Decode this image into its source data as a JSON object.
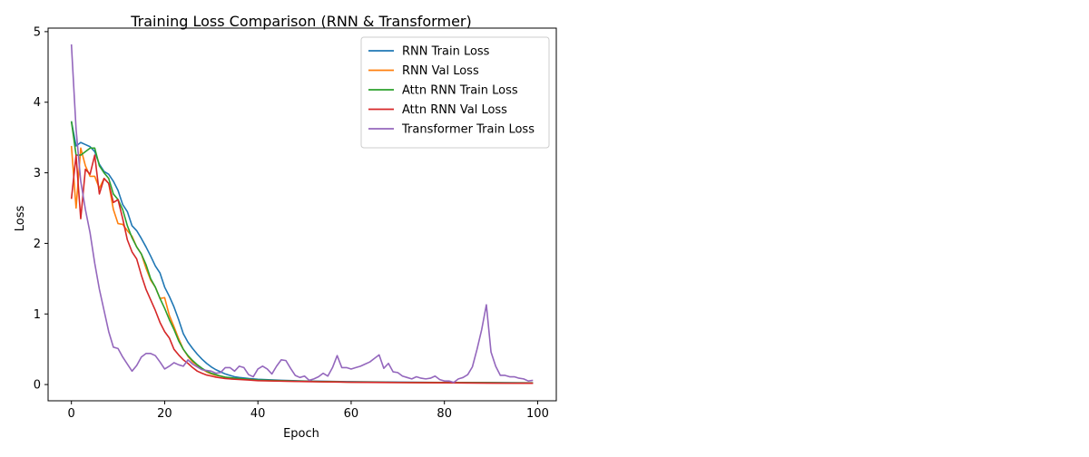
{
  "chart_data": {
    "type": "line",
    "title": "Training Loss Comparison (RNN & Transformer)",
    "xlabel": "Epoch",
    "ylabel": "Loss",
    "xlim": [
      -5,
      104
    ],
    "ylim": [
      -0.23,
      5.05
    ],
    "xticks": [
      0,
      20,
      40,
      60,
      80,
      100
    ],
    "yticks": [
      0,
      1,
      2,
      3,
      4,
      5
    ],
    "grid": false,
    "legend_position": "top-right",
    "series": [
      {
        "name": "RNN Train Loss",
        "color": "#1f77b4",
        "points": [
          [
            0,
            3.73
          ],
          [
            1,
            3.38
          ],
          [
            2,
            3.43
          ],
          [
            3,
            3.4
          ],
          [
            4,
            3.37
          ],
          [
            5,
            3.3
          ],
          [
            6,
            3.12
          ],
          [
            7,
            3.02
          ],
          [
            8,
            2.98
          ],
          [
            9,
            2.88
          ],
          [
            10,
            2.75
          ],
          [
            11,
            2.55
          ],
          [
            12,
            2.45
          ],
          [
            13,
            2.25
          ],
          [
            14,
            2.18
          ],
          [
            15,
            2.07
          ],
          [
            16,
            1.95
          ],
          [
            17,
            1.82
          ],
          [
            18,
            1.68
          ],
          [
            19,
            1.58
          ],
          [
            20,
            1.38
          ],
          [
            21,
            1.25
          ],
          [
            22,
            1.1
          ],
          [
            23,
            0.92
          ],
          [
            24,
            0.72
          ],
          [
            25,
            0.6
          ],
          [
            26,
            0.51
          ],
          [
            27,
            0.43
          ],
          [
            28,
            0.36
          ],
          [
            29,
            0.3
          ],
          [
            30,
            0.25
          ],
          [
            31,
            0.21
          ],
          [
            32,
            0.18
          ],
          [
            33,
            0.15
          ],
          [
            34,
            0.13
          ],
          [
            35,
            0.11
          ],
          [
            36,
            0.1
          ],
          [
            38,
            0.085
          ],
          [
            40,
            0.075
          ],
          [
            45,
            0.06
          ],
          [
            50,
            0.05
          ],
          [
            55,
            0.045
          ],
          [
            60,
            0.04
          ],
          [
            70,
            0.035
          ],
          [
            80,
            0.03
          ],
          [
            90,
            0.028
          ],
          [
            99,
            0.025
          ]
        ]
      },
      {
        "name": "RNN Val Loss",
        "color": "#ff7f0e",
        "points": [
          [
            0,
            3.38
          ],
          [
            1,
            2.5
          ],
          [
            2,
            3.35
          ],
          [
            3,
            3.1
          ],
          [
            4,
            2.95
          ],
          [
            5,
            2.95
          ],
          [
            6,
            2.78
          ],
          [
            7,
            2.92
          ],
          [
            8,
            2.85
          ],
          [
            9,
            2.48
          ],
          [
            10,
            2.28
          ],
          [
            11,
            2.27
          ],
          [
            12,
            2.18
          ],
          [
            13,
            2.1
          ],
          [
            14,
            1.95
          ],
          [
            15,
            1.85
          ],
          [
            16,
            1.65
          ],
          [
            17,
            1.48
          ],
          [
            18,
            1.38
          ],
          [
            19,
            1.22
          ],
          [
            20,
            1.23
          ],
          [
            21,
            0.98
          ],
          [
            22,
            0.82
          ],
          [
            23,
            0.65
          ],
          [
            24,
            0.5
          ],
          [
            25,
            0.4
          ],
          [
            26,
            0.32
          ],
          [
            27,
            0.27
          ],
          [
            28,
            0.22
          ],
          [
            29,
            0.18
          ],
          [
            30,
            0.15
          ],
          [
            31,
            0.13
          ],
          [
            32,
            0.12
          ],
          [
            33,
            0.1
          ],
          [
            35,
            0.085
          ],
          [
            38,
            0.07
          ],
          [
            40,
            0.06
          ],
          [
            45,
            0.05
          ],
          [
            50,
            0.045
          ],
          [
            55,
            0.04
          ],
          [
            60,
            0.035
          ],
          [
            70,
            0.03
          ],
          [
            80,
            0.028
          ],
          [
            90,
            0.025
          ],
          [
            99,
            0.022
          ]
        ]
      },
      {
        "name": "Attn RNN Train Loss",
        "color": "#2ca02c",
        "points": [
          [
            0,
            3.73
          ],
          [
            1,
            3.25
          ],
          [
            2,
            3.25
          ],
          [
            3,
            3.3
          ],
          [
            4,
            3.35
          ],
          [
            5,
            3.35
          ],
          [
            6,
            3.1
          ],
          [
            7,
            3.0
          ],
          [
            8,
            2.92
          ],
          [
            9,
            2.7
          ],
          [
            10,
            2.62
          ],
          [
            11,
            2.48
          ],
          [
            12,
            2.25
          ],
          [
            13,
            2.08
          ],
          [
            14,
            1.95
          ],
          [
            15,
            1.85
          ],
          [
            16,
            1.7
          ],
          [
            17,
            1.5
          ],
          [
            18,
            1.38
          ],
          [
            19,
            1.22
          ],
          [
            20,
            1.08
          ],
          [
            21,
            0.92
          ],
          [
            22,
            0.78
          ],
          [
            23,
            0.62
          ],
          [
            24,
            0.5
          ],
          [
            25,
            0.41
          ],
          [
            26,
            0.34
          ],
          [
            27,
            0.28
          ],
          [
            28,
            0.23
          ],
          [
            29,
            0.19
          ],
          [
            30,
            0.16
          ],
          [
            31,
            0.14
          ],
          [
            32,
            0.12
          ],
          [
            33,
            0.105
          ],
          [
            35,
            0.09
          ],
          [
            38,
            0.075
          ],
          [
            40,
            0.065
          ],
          [
            45,
            0.055
          ],
          [
            50,
            0.045
          ],
          [
            55,
            0.04
          ],
          [
            60,
            0.035
          ],
          [
            70,
            0.03
          ],
          [
            80,
            0.027
          ],
          [
            90,
            0.024
          ],
          [
            99,
            0.02
          ]
        ]
      },
      {
        "name": "Attn RNN Val Loss",
        "color": "#d62728",
        "points": [
          [
            0,
            2.63
          ],
          [
            1,
            3.25
          ],
          [
            2,
            2.35
          ],
          [
            3,
            3.05
          ],
          [
            4,
            2.98
          ],
          [
            5,
            3.25
          ],
          [
            6,
            2.7
          ],
          [
            7,
            2.92
          ],
          [
            8,
            2.85
          ],
          [
            9,
            2.58
          ],
          [
            10,
            2.62
          ],
          [
            11,
            2.35
          ],
          [
            12,
            2.05
          ],
          [
            13,
            1.88
          ],
          [
            14,
            1.78
          ],
          [
            15,
            1.55
          ],
          [
            16,
            1.35
          ],
          [
            17,
            1.2
          ],
          [
            18,
            1.05
          ],
          [
            19,
            0.88
          ],
          [
            20,
            0.75
          ],
          [
            21,
            0.66
          ],
          [
            22,
            0.5
          ],
          [
            23,
            0.42
          ],
          [
            24,
            0.35
          ],
          [
            25,
            0.3
          ],
          [
            26,
            0.24
          ],
          [
            27,
            0.19
          ],
          [
            28,
            0.16
          ],
          [
            29,
            0.135
          ],
          [
            30,
            0.12
          ],
          [
            31,
            0.105
          ],
          [
            32,
            0.095
          ],
          [
            33,
            0.085
          ],
          [
            35,
            0.075
          ],
          [
            38,
            0.065
          ],
          [
            40,
            0.055
          ],
          [
            45,
            0.048
          ],
          [
            50,
            0.042
          ],
          [
            55,
            0.038
          ],
          [
            60,
            0.033
          ],
          [
            70,
            0.028
          ],
          [
            80,
            0.024
          ],
          [
            90,
            0.02
          ],
          [
            99,
            0.018
          ]
        ]
      },
      {
        "name": "Transformer Train Loss",
        "color": "#9467bd",
        "points": [
          [
            0,
            4.82
          ],
          [
            1,
            3.62
          ],
          [
            2,
            2.88
          ],
          [
            3,
            2.48
          ],
          [
            4,
            2.15
          ],
          [
            5,
            1.72
          ],
          [
            6,
            1.35
          ],
          [
            7,
            1.05
          ],
          [
            8,
            0.75
          ],
          [
            9,
            0.53
          ],
          [
            10,
            0.51
          ],
          [
            11,
            0.39
          ],
          [
            12,
            0.29
          ],
          [
            13,
            0.19
          ],
          [
            14,
            0.27
          ],
          [
            15,
            0.39
          ],
          [
            16,
            0.44
          ],
          [
            17,
            0.44
          ],
          [
            18,
            0.41
          ],
          [
            19,
            0.32
          ],
          [
            20,
            0.22
          ],
          [
            21,
            0.26
          ],
          [
            22,
            0.31
          ],
          [
            23,
            0.28
          ],
          [
            24,
            0.26
          ],
          [
            25,
            0.35
          ],
          [
            26,
            0.29
          ],
          [
            27,
            0.25
          ],
          [
            28,
            0.21
          ],
          [
            29,
            0.2
          ],
          [
            30,
            0.19
          ],
          [
            31,
            0.16
          ],
          [
            32,
            0.17
          ],
          [
            33,
            0.24
          ],
          [
            34,
            0.24
          ],
          [
            35,
            0.19
          ],
          [
            36,
            0.26
          ],
          [
            37,
            0.24
          ],
          [
            38,
            0.14
          ],
          [
            39,
            0.11
          ],
          [
            40,
            0.22
          ],
          [
            41,
            0.26
          ],
          [
            42,
            0.22
          ],
          [
            43,
            0.15
          ],
          [
            44,
            0.26
          ],
          [
            45,
            0.35
          ],
          [
            46,
            0.34
          ],
          [
            47,
            0.23
          ],
          [
            48,
            0.13
          ],
          [
            49,
            0.1
          ],
          [
            50,
            0.12
          ],
          [
            51,
            0.06
          ],
          [
            52,
            0.08
          ],
          [
            53,
            0.11
          ],
          [
            54,
            0.16
          ],
          [
            55,
            0.12
          ],
          [
            56,
            0.24
          ],
          [
            57,
            0.41
          ],
          [
            58,
            0.24
          ],
          [
            59,
            0.24
          ],
          [
            60,
            0.22
          ],
          [
            61,
            0.24
          ],
          [
            62,
            0.26
          ],
          [
            63,
            0.29
          ],
          [
            64,
            0.32
          ],
          [
            65,
            0.37
          ],
          [
            66,
            0.42
          ],
          [
            67,
            0.23
          ],
          [
            68,
            0.3
          ],
          [
            69,
            0.18
          ],
          [
            70,
            0.17
          ],
          [
            71,
            0.12
          ],
          [
            72,
            0.1
          ],
          [
            73,
            0.08
          ],
          [
            74,
            0.11
          ],
          [
            75,
            0.09
          ],
          [
            76,
            0.08
          ],
          [
            77,
            0.09
          ],
          [
            78,
            0.12
          ],
          [
            79,
            0.07
          ],
          [
            80,
            0.05
          ],
          [
            81,
            0.05
          ],
          [
            82,
            0.03
          ],
          [
            83,
            0.08
          ],
          [
            84,
            0.1
          ],
          [
            85,
            0.14
          ],
          [
            86,
            0.25
          ],
          [
            87,
            0.5
          ],
          [
            88,
            0.78
          ],
          [
            89,
            1.13
          ],
          [
            90,
            0.46
          ],
          [
            91,
            0.26
          ],
          [
            92,
            0.13
          ],
          [
            93,
            0.13
          ],
          [
            94,
            0.11
          ],
          [
            95,
            0.11
          ],
          [
            96,
            0.09
          ],
          [
            97,
            0.08
          ],
          [
            98,
            0.05
          ],
          [
            99,
            0.06
          ]
        ]
      }
    ]
  }
}
